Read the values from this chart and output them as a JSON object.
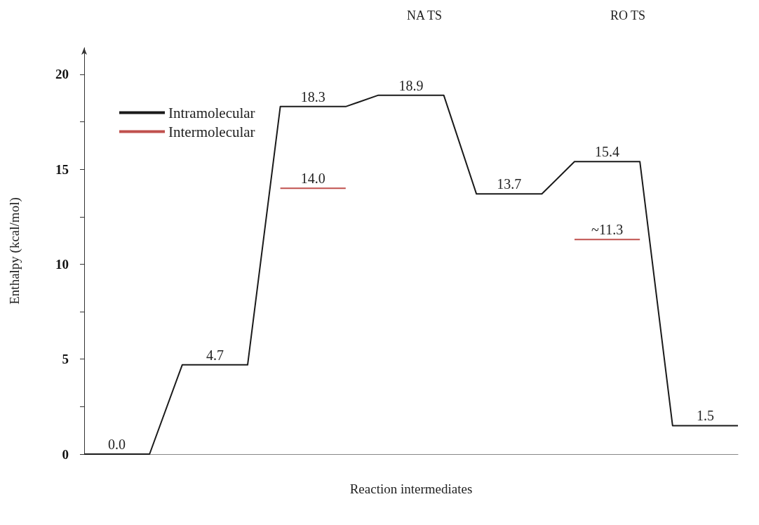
{
  "chart_data": {
    "type": "line",
    "xlabel": "Reaction intermediates",
    "ylabel": "Enthalpy (kcal/mol)",
    "categories": [
      null,
      null,
      null,
      null,
      null,
      null,
      null,
      null,
      null,
      null,
      null,
      null,
      null,
      null,
      null,
      null,
      null,
      null,
      null,
      null,
      null
    ],
    "ylim": [
      0,
      21.4
    ],
    "yticks": [
      0,
      {
        "value": 2.5,
        "label": null
      },
      5,
      {
        "value": 7.5,
        "label": null
      },
      10,
      {
        "value": 12.5,
        "label": null
      },
      15,
      {
        "value": 17.5,
        "label": null
      },
      20
    ],
    "series": [
      {
        "name": "Intramolecular",
        "color": "#1a1a1a",
        "values": [
          0,
          0,
          0,
          4.7,
          4.7,
          4.7,
          18.3,
          18.3,
          18.3,
          18.9,
          18.9,
          18.9,
          13.7,
          13.7,
          13.7,
          15.4,
          15.4,
          15.4,
          1.5,
          1.5,
          1.5
        ],
        "value_labels": [
          null,
          "0.0",
          null,
          null,
          "4.7",
          null,
          null,
          "18.3",
          null,
          null,
          "18.9",
          null,
          null,
          "13.7",
          null,
          null,
          "15.4",
          null,
          null,
          "1.5",
          null
        ]
      },
      {
        "name": "Intermolecular",
        "color": "#c0504d",
        "values": [
          null,
          null,
          null,
          null,
          null,
          null,
          14.0,
          14.0,
          14.0,
          null,
          null,
          null,
          null,
          null,
          null,
          11.3,
          11.3,
          11.3,
          null,
          null,
          null
        ],
        "value_labels": [
          null,
          null,
          null,
          null,
          null,
          null,
          null,
          "14.0",
          null,
          null,
          null,
          null,
          null,
          null,
          null,
          null,
          "~11.3",
          null,
          null,
          null,
          null
        ]
      }
    ],
    "annotations": [
      "NA TS",
      "RO TS"
    ],
    "legend": "top left",
    "grid": false,
    "marker": "none",
    "line_style": "solid",
    "tick_labels": "y"
  }
}
